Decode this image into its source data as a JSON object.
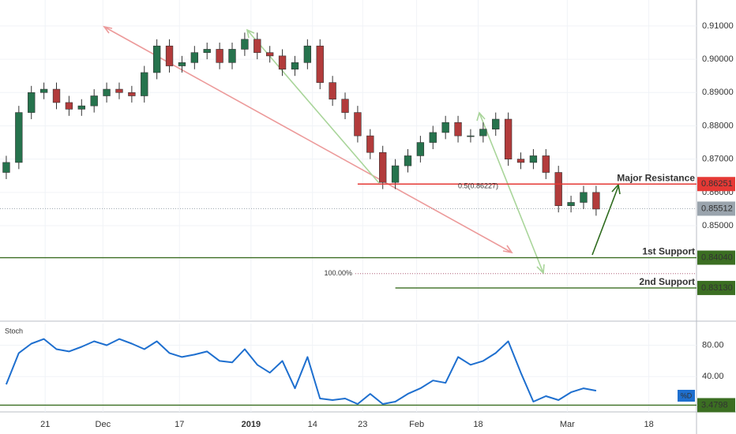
{
  "chart_data": {
    "type": "candlestick",
    "xlim": [
      -0.5,
      55
    ],
    "xticks": [
      {
        "value": 3.1,
        "label": "21"
      },
      {
        "value": 7.7,
        "label": "Dec"
      },
      {
        "value": 13.8,
        "label": "17"
      },
      {
        "value": 19.5,
        "label": "2019"
      },
      {
        "value": 24.4,
        "label": "14"
      },
      {
        "value": 28.4,
        "label": "23"
      },
      {
        "value": 32.7,
        "label": "Feb"
      },
      {
        "value": 37.6,
        "label": "18"
      },
      {
        "value": 44.7,
        "label": "Mar"
      },
      {
        "value": 51.2,
        "label": "18"
      }
    ],
    "ylim": [
      0.8218,
      0.9178
    ],
    "yticks": [
      {
        "value": 0.91,
        "label": "0.91000"
      },
      {
        "value": 0.9,
        "label": "0.90000"
      },
      {
        "value": 0.89,
        "label": "0.89000"
      },
      {
        "value": 0.88,
        "label": "0.88000"
      },
      {
        "value": 0.87,
        "label": "0.87000"
      },
      {
        "value": 0.86,
        "label": "0.86000"
      },
      {
        "value": 0.85,
        "label": "0.85000"
      }
    ],
    "grid": true,
    "up_color": "#26734d",
    "down_color": "#b23b3b",
    "open": [
      0.866,
      0.869,
      0.884,
      0.89,
      0.891,
      0.887,
      0.885,
      0.886,
      0.889,
      0.891,
      0.89,
      0.889,
      0.896,
      0.904,
      0.898,
      0.899,
      0.902,
      0.903,
      0.899,
      0.903,
      0.906,
      0.902,
      0.901,
      0.897,
      0.899,
      0.904,
      0.893,
      0.888,
      0.884,
      0.877,
      0.872,
      0.863,
      0.868,
      0.871,
      0.875,
      0.878,
      0.881,
      0.877,
      0.877,
      0.879,
      0.882,
      0.87,
      0.869,
      0.871,
      0.866,
      0.856,
      0.857,
      0.86
    ],
    "high": [
      0.871,
      0.886,
      0.892,
      0.893,
      0.893,
      0.889,
      0.888,
      0.891,
      0.893,
      0.893,
      0.892,
      0.898,
      0.906,
      0.906,
      0.901,
      0.904,
      0.905,
      0.905,
      0.905,
      0.908,
      0.908,
      0.904,
      0.903,
      0.901,
      0.906,
      0.906,
      0.895,
      0.89,
      0.886,
      0.879,
      0.874,
      0.87,
      0.873,
      0.877,
      0.88,
      0.883,
      0.883,
      0.879,
      0.881,
      0.884,
      0.884,
      0.872,
      0.873,
      0.873,
      0.868,
      0.859,
      0.862,
      0.862
    ],
    "low": [
      0.864,
      0.867,
      0.882,
      0.888,
      0.885,
      0.883,
      0.883,
      0.884,
      0.887,
      0.888,
      0.887,
      0.887,
      0.894,
      0.896,
      0.896,
      0.897,
      0.9,
      0.897,
      0.897,
      0.901,
      0.9,
      0.899,
      0.895,
      0.895,
      0.897,
      0.891,
      0.886,
      0.882,
      0.875,
      0.87,
      0.861,
      0.861,
      0.866,
      0.869,
      0.873,
      0.876,
      0.875,
      0.875,
      0.875,
      0.877,
      0.868,
      0.867,
      0.867,
      0.864,
      0.854,
      0.854,
      0.855,
      0.853
    ],
    "close": [
      0.869,
      0.884,
      0.89,
      0.891,
      0.887,
      0.885,
      0.886,
      0.889,
      0.891,
      0.89,
      0.889,
      0.896,
      0.904,
      0.898,
      0.899,
      0.902,
      0.903,
      0.899,
      0.903,
      0.906,
      0.902,
      0.901,
      0.897,
      0.899,
      0.904,
      0.893,
      0.888,
      0.884,
      0.877,
      0.872,
      0.863,
      0.868,
      0.871,
      0.875,
      0.878,
      0.881,
      0.877,
      0.877,
      0.879,
      0.882,
      0.87,
      0.869,
      0.871,
      0.866,
      0.856,
      0.857,
      0.86,
      0.855
    ],
    "levels": [
      {
        "name": "Major Resistance",
        "value": 0.86251,
        "label": "0.86251",
        "color": "#e53935",
        "start": 28.0,
        "note": "0.5(0.86227)"
      },
      {
        "name": "1st Support",
        "value": 0.8404,
        "label": "0.84040",
        "color": "#3b6e22",
        "start": -0.5
      },
      {
        "name": "2nd Support",
        "value": 0.8313,
        "label": "0.83130",
        "color": "#3b6e22",
        "start": 31.0
      }
    ],
    "fib_line": {
      "label": "100.00%",
      "value": 0.8356,
      "color": "#b0607a"
    },
    "last_price": {
      "value": 0.85512,
      "color": "#9aa4ad"
    },
    "stoch": {
      "title": "Stoch",
      "legend": "%D",
      "color": "#1e6fcf",
      "ylim": [
        -5.1,
        107.7
      ],
      "yticks": [
        {
          "value": 80,
          "label": "80.00"
        },
        {
          "value": 40,
          "label": "40.00"
        }
      ],
      "level": 3.4798,
      "level_color": "#3b6e22",
      "values": [
        30,
        70,
        82,
        88,
        75,
        72,
        78,
        85,
        80,
        88,
        82,
        75,
        85,
        70,
        65,
        68,
        72,
        60,
        58,
        75,
        55,
        45,
        60,
        25,
        65,
        12,
        10,
        12,
        5,
        18,
        5,
        8,
        18,
        25,
        35,
        32,
        65,
        55,
        60,
        70,
        85,
        45,
        8,
        15,
        10,
        20,
        25,
        22
      ]
    }
  }
}
